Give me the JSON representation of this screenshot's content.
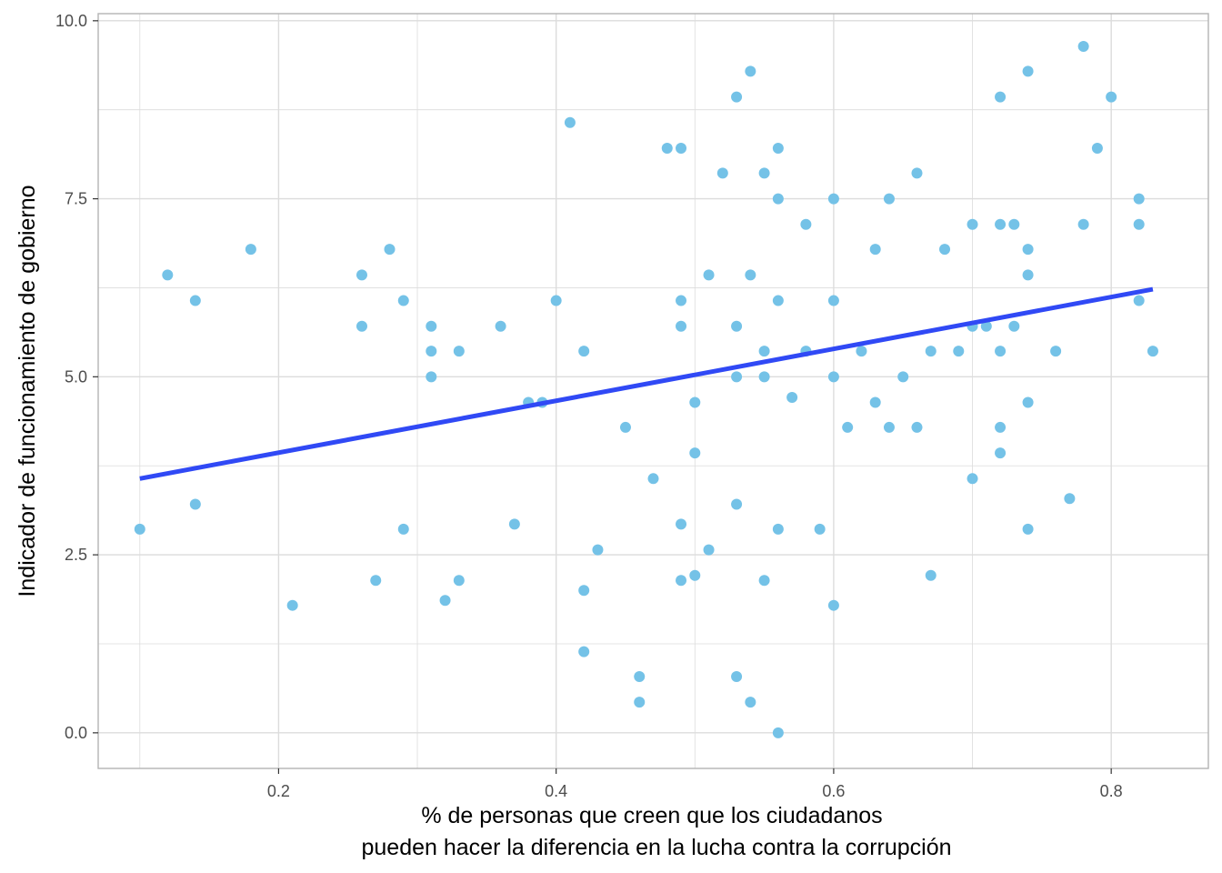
{
  "chart_data": {
    "type": "scatter",
    "title": "",
    "xlabel_lines": [
      "% de personas que creen que los ciudadanos",
      "pueden hacer la diferencia en la lucha contra la corrupción"
    ],
    "ylabel": "Indicador de funcionamiento de gobierno",
    "xlim": [
      0.07,
      0.87
    ],
    "ylim": [
      -0.5,
      10.1
    ],
    "x_ticks": [
      0.2,
      0.4,
      0.6,
      0.8
    ],
    "x_tick_labels": [
      "0.2",
      "0.4",
      "0.6",
      "0.8"
    ],
    "x_minor": [
      0.1,
      0.3,
      0.5,
      0.7
    ],
    "y_ticks": [
      0,
      2.5,
      5,
      7.5,
      10
    ],
    "y_tick_labels": [
      "0.0",
      "2.5",
      "5.0",
      "7.5",
      "10.0"
    ],
    "y_minor": [
      1.25,
      3.75,
      6.25,
      8.75
    ],
    "grid": true,
    "point_color": "#74c2e7",
    "trend_color": "#3049f5",
    "panel_border_color": "#b3b3b3",
    "grid_color": "#dcdcdc",
    "trend_line": {
      "x": [
        0.1,
        0.83
      ],
      "y": [
        3.57,
        6.23
      ]
    },
    "points": [
      [
        0.1,
        2.86
      ],
      [
        0.12,
        6.43
      ],
      [
        0.14,
        6.07
      ],
      [
        0.14,
        3.21
      ],
      [
        0.18,
        6.79
      ],
      [
        0.21,
        1.79
      ],
      [
        0.26,
        6.43
      ],
      [
        0.26,
        5.71
      ],
      [
        0.27,
        2.14
      ],
      [
        0.28,
        6.79
      ],
      [
        0.29,
        6.07
      ],
      [
        0.29,
        2.86
      ],
      [
        0.31,
        5.71
      ],
      [
        0.31,
        5.36
      ],
      [
        0.31,
        5.0
      ],
      [
        0.32,
        1.86
      ],
      [
        0.33,
        5.36
      ],
      [
        0.33,
        2.14
      ],
      [
        0.36,
        5.71
      ],
      [
        0.37,
        2.93
      ],
      [
        0.38,
        4.64
      ],
      [
        0.39,
        4.64
      ],
      [
        0.4,
        6.07
      ],
      [
        0.41,
        8.57
      ],
      [
        0.42,
        5.36
      ],
      [
        0.42,
        2.0
      ],
      [
        0.42,
        1.14
      ],
      [
        0.43,
        2.57
      ],
      [
        0.45,
        4.29
      ],
      [
        0.46,
        0.79
      ],
      [
        0.46,
        0.43
      ],
      [
        0.47,
        3.57
      ],
      [
        0.48,
        8.21
      ],
      [
        0.49,
        8.21
      ],
      [
        0.49,
        6.07
      ],
      [
        0.49,
        5.71
      ],
      [
        0.49,
        2.93
      ],
      [
        0.49,
        2.14
      ],
      [
        0.5,
        4.64
      ],
      [
        0.5,
        3.93
      ],
      [
        0.5,
        2.21
      ],
      [
        0.51,
        6.43
      ],
      [
        0.51,
        2.57
      ],
      [
        0.52,
        7.86
      ],
      [
        0.53,
        8.93
      ],
      [
        0.53,
        5.71
      ],
      [
        0.53,
        5.0
      ],
      [
        0.53,
        3.21
      ],
      [
        0.53,
        0.79
      ],
      [
        0.54,
        9.29
      ],
      [
        0.54,
        6.43
      ],
      [
        0.54,
        0.43
      ],
      [
        0.55,
        7.86
      ],
      [
        0.55,
        5.36
      ],
      [
        0.55,
        5.0
      ],
      [
        0.55,
        2.14
      ],
      [
        0.56,
        8.21
      ],
      [
        0.56,
        7.5
      ],
      [
        0.56,
        6.07
      ],
      [
        0.56,
        2.86
      ],
      [
        0.56,
        0.0
      ],
      [
        0.57,
        4.71
      ],
      [
        0.58,
        7.14
      ],
      [
        0.58,
        5.36
      ],
      [
        0.59,
        2.86
      ],
      [
        0.6,
        7.5
      ],
      [
        0.6,
        6.07
      ],
      [
        0.6,
        5.0
      ],
      [
        0.6,
        1.79
      ],
      [
        0.61,
        4.29
      ],
      [
        0.62,
        5.36
      ],
      [
        0.63,
        6.79
      ],
      [
        0.63,
        4.64
      ],
      [
        0.64,
        7.5
      ],
      [
        0.64,
        4.29
      ],
      [
        0.65,
        5.0
      ],
      [
        0.66,
        7.86
      ],
      [
        0.66,
        4.29
      ],
      [
        0.67,
        5.36
      ],
      [
        0.67,
        2.21
      ],
      [
        0.68,
        6.79
      ],
      [
        0.69,
        5.36
      ],
      [
        0.7,
        7.14
      ],
      [
        0.7,
        5.71
      ],
      [
        0.7,
        3.57
      ],
      [
        0.71,
        5.71
      ],
      [
        0.72,
        8.93
      ],
      [
        0.72,
        7.14
      ],
      [
        0.72,
        5.36
      ],
      [
        0.72,
        4.29
      ],
      [
        0.72,
        3.93
      ],
      [
        0.73,
        7.14
      ],
      [
        0.73,
        5.71
      ],
      [
        0.74,
        9.29
      ],
      [
        0.74,
        6.79
      ],
      [
        0.74,
        6.43
      ],
      [
        0.74,
        4.64
      ],
      [
        0.74,
        2.86
      ],
      [
        0.76,
        5.36
      ],
      [
        0.77,
        3.29
      ],
      [
        0.78,
        9.64
      ],
      [
        0.78,
        7.14
      ],
      [
        0.79,
        8.21
      ],
      [
        0.8,
        8.93
      ],
      [
        0.82,
        7.5
      ],
      [
        0.82,
        7.14
      ],
      [
        0.82,
        6.07
      ],
      [
        0.83,
        5.36
      ]
    ]
  }
}
